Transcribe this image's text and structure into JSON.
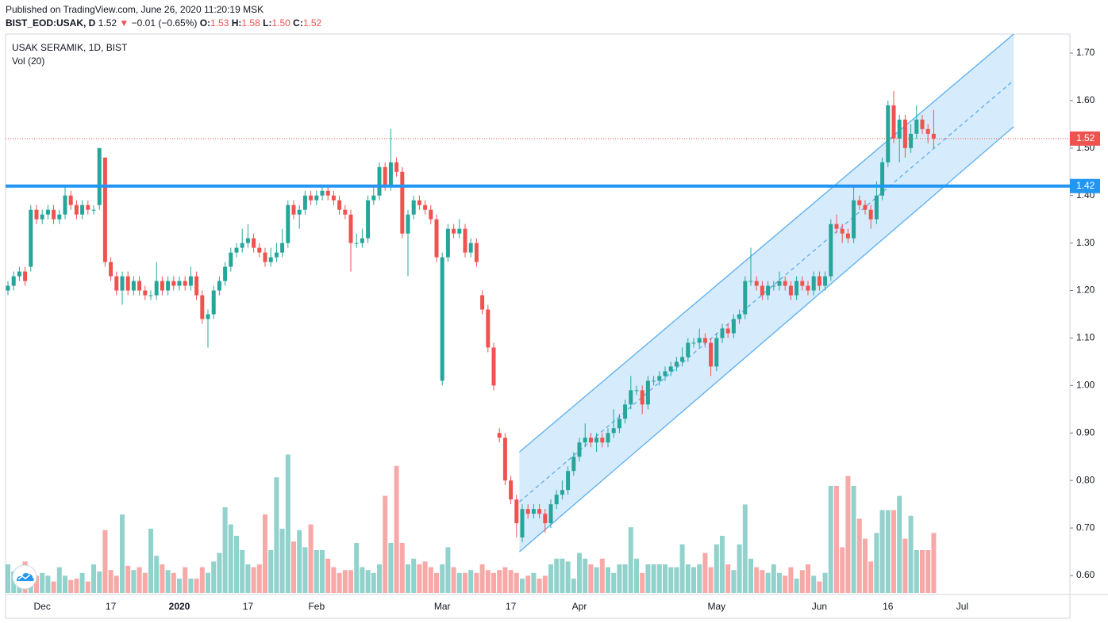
{
  "chart_data": {
    "type": "candlestick",
    "header": {
      "published": "Published on TradingView.com, June 26, 2020 11:20:19 MSK",
      "symbol": "BIST_EOD:USAK, D",
      "last": "1.52",
      "arrow": "▼",
      "change": "−0.01 (−0.65%)",
      "o_label": "O:",
      "o": "1.53",
      "h_label": "H:",
      "h": "1.58",
      "l_label": "L:",
      "l": "1.50",
      "c_label": "C:",
      "c": "1.52"
    },
    "legend": [
      "USAK SERAMIK, 1D, BIST",
      "Vol (20)"
    ],
    "categories": [
      null,
      null,
      null,
      null,
      null,
      null,
      "Dec",
      null,
      null,
      null,
      null,
      null,
      null,
      null,
      null,
      null,
      null,
      null,
      "17",
      null,
      null,
      null,
      null,
      null,
      null,
      null,
      null,
      null,
      null,
      null,
      "2020",
      null,
      null,
      null,
      null,
      null,
      null,
      null,
      null,
      null,
      null,
      null,
      "17",
      null,
      null,
      null,
      null,
      null,
      null,
      null,
      null,
      null,
      null,
      null,
      "Feb",
      null,
      null,
      null,
      null,
      null,
      null,
      null,
      null,
      null,
      null,
      null,
      null,
      null,
      null,
      null,
      null,
      null,
      null,
      null,
      null,
      null,
      "Mar",
      null,
      null,
      null,
      null,
      null,
      null,
      null,
      null,
      null,
      null,
      null,
      "17",
      null,
      null,
      null,
      null,
      null,
      null,
      null,
      null,
      null,
      null,
      null,
      "Apr",
      null,
      null,
      null,
      null,
      null,
      null,
      null,
      null,
      null,
      null,
      null,
      null,
      null,
      null,
      null,
      null,
      null,
      null,
      null,
      null,
      null,
      null,
      null,
      "May",
      null,
      null,
      null,
      null,
      null,
      null,
      null,
      null,
      null,
      null,
      null,
      null,
      null,
      null,
      null,
      null,
      null,
      "Jun",
      null,
      null,
      null,
      null,
      null,
      null,
      null,
      null,
      null,
      null,
      null,
      "16",
      null,
      null,
      null,
      null,
      null,
      null,
      null,
      null,
      null,
      null,
      null,
      null,
      "Jul",
      null,
      null,
      null,
      null,
      null,
      null,
      null,
      null,
      null
    ],
    "open": [
      1.2,
      1.21,
      1.23,
      1.24,
      1.25,
      1.37,
      1.35,
      1.36,
      1.37,
      1.35,
      1.36,
      1.4,
      1.38,
      1.36,
      1.38,
      1.37,
      1.38,
      1.48,
      1.26,
      1.23,
      1.2,
      1.23,
      1.2,
      1.22,
      1.2,
      1.19,
      1.19,
      1.22,
      1.2,
      1.22,
      1.21,
      1.22,
      1.21,
      1.23,
      1.19,
      1.14,
      1.15,
      1.2,
      1.22,
      1.25,
      1.28,
      1.29,
      1.3,
      1.31,
      1.29,
      1.28,
      1.26,
      1.27,
      1.28,
      1.3,
      1.38,
      1.36,
      1.37,
      1.4,
      1.39,
      1.4,
      1.41,
      1.4,
      1.39,
      1.37,
      1.36,
      1.3,
      1.3,
      1.31,
      1.39,
      1.4,
      1.46,
      1.42,
      1.47,
      1.45,
      1.32,
      1.36,
      1.39,
      1.38,
      1.37,
      1.35,
      1.01,
      1.27,
      1.33,
      1.32,
      1.33,
      1.28,
      1.3,
      1.19,
      1.16,
      1.08,
      0.9,
      0.89,
      0.8,
      0.76,
      0.68,
      0.74,
      0.73,
      0.74,
      0.73,
      0.71,
      0.75,
      0.77,
      0.78,
      0.82,
      0.85,
      0.88,
      0.89,
      0.88,
      0.89,
      0.88,
      0.9,
      0.91,
      0.93,
      0.96,
      0.99,
      0.99,
      0.96,
      1.01,
      1.01,
      1.02,
      1.03,
      1.04,
      1.05,
      1.06,
      1.09,
      1.09,
      1.1,
      1.09,
      1.04,
      1.1,
      1.12,
      1.11,
      1.14,
      1.15,
      1.22,
      1.22,
      1.21,
      1.19,
      1.21,
      1.21,
      1.22,
      1.21,
      1.19,
      1.22,
      1.21,
      1.2,
      1.23,
      1.21,
      1.23,
      1.34,
      1.33,
      1.32,
      1.31,
      1.39,
      1.38,
      1.37,
      1.35,
      1.4,
      1.47,
      1.59,
      1.52,
      1.56,
      1.5,
      1.53,
      1.56,
      1.54,
      1.53,
      null,
      null,
      null,
      null,
      null,
      null,
      null,
      null,
      null,
      null,
      null,
      null,
      null,
      null
    ],
    "high": [
      1.22,
      1.24,
      1.25,
      1.25,
      1.38,
      1.38,
      1.37,
      1.38,
      1.38,
      1.37,
      1.42,
      1.41,
      1.39,
      1.39,
      1.39,
      1.38,
      1.5,
      1.48,
      1.27,
      1.24,
      1.24,
      1.24,
      1.23,
      1.23,
      1.21,
      1.2,
      1.26,
      1.23,
      1.23,
      1.23,
      1.23,
      1.23,
      1.25,
      1.24,
      1.2,
      1.16,
      1.21,
      1.23,
      1.26,
      1.29,
      1.3,
      1.33,
      1.34,
      1.32,
      1.3,
      1.29,
      1.29,
      1.3,
      1.33,
      1.39,
      1.39,
      1.38,
      1.41,
      1.41,
      1.41,
      1.42,
      1.42,
      1.41,
      1.4,
      1.38,
      1.37,
      1.32,
      1.33,
      1.4,
      1.42,
      1.47,
      1.47,
      1.54,
      1.48,
      1.46,
      1.37,
      1.4,
      1.4,
      1.39,
      1.38,
      1.36,
      1.28,
      1.34,
      1.34,
      1.35,
      1.34,
      1.31,
      1.31,
      1.2,
      1.17,
      1.09,
      0.91,
      0.9,
      0.81,
      0.77,
      0.75,
      0.75,
      0.75,
      0.75,
      0.74,
      0.76,
      0.78,
      0.8,
      0.83,
      0.86,
      0.89,
      0.92,
      0.9,
      0.9,
      0.9,
      0.91,
      0.95,
      0.94,
      0.97,
      1.02,
      1.0,
      1.0,
      1.02,
      1.02,
      1.03,
      1.04,
      1.05,
      1.06,
      1.08,
      1.1,
      1.1,
      1.12,
      1.11,
      1.1,
      1.11,
      1.13,
      1.13,
      1.15,
      1.16,
      1.23,
      1.29,
      1.23,
      1.22,
      1.22,
      1.22,
      1.24,
      1.23,
      1.22,
      1.23,
      1.23,
      1.22,
      1.24,
      1.24,
      1.24,
      1.35,
      1.36,
      1.34,
      1.33,
      1.42,
      1.4,
      1.39,
      1.38,
      1.43,
      1.48,
      1.6,
      1.62,
      1.57,
      1.57,
      1.55,
      1.59,
      1.57,
      1.55,
      1.58,
      null,
      null,
      null,
      null,
      null,
      null,
      null,
      null,
      null,
      null,
      null,
      null,
      null,
      null
    ],
    "low": [
      1.19,
      1.2,
      1.22,
      1.21,
      1.24,
      1.34,
      1.34,
      1.35,
      1.34,
      1.34,
      1.35,
      1.37,
      1.35,
      1.35,
      1.36,
      1.36,
      1.37,
      1.25,
      1.22,
      1.19,
      1.17,
      1.19,
      1.19,
      1.19,
      1.18,
      1.18,
      1.18,
      1.19,
      1.19,
      1.2,
      1.2,
      1.2,
      1.2,
      1.18,
      1.13,
      1.08,
      1.14,
      1.19,
      1.21,
      1.24,
      1.27,
      1.28,
      1.29,
      1.28,
      1.27,
      1.25,
      1.25,
      1.26,
      1.27,
      1.29,
      1.35,
      1.33,
      1.36,
      1.38,
      1.38,
      1.39,
      1.39,
      1.38,
      1.36,
      1.35,
      1.24,
      1.29,
      1.29,
      1.3,
      1.38,
      1.39,
      1.41,
      1.41,
      1.44,
      1.31,
      1.23,
      1.35,
      1.37,
      1.36,
      1.34,
      1.26,
      1.0,
      1.26,
      1.31,
      1.31,
      1.27,
      1.27,
      1.25,
      1.15,
      1.07,
      0.99,
      0.88,
      0.79,
      0.75,
      0.68,
      0.67,
      0.72,
      0.72,
      0.72,
      0.69,
      0.7,
      0.74,
      0.76,
      0.77,
      0.81,
      0.84,
      0.87,
      0.87,
      0.86,
      0.87,
      0.87,
      0.89,
      0.9,
      0.92,
      0.95,
      0.98,
      0.94,
      0.95,
      1.0,
      1.0,
      1.01,
      1.02,
      1.03,
      1.04,
      1.05,
      1.08,
      1.08,
      1.08,
      1.02,
      1.03,
      1.09,
      1.1,
      1.1,
      1.13,
      1.14,
      1.21,
      1.2,
      1.18,
      1.18,
      1.2,
      1.2,
      1.2,
      1.18,
      1.18,
      1.2,
      1.19,
      1.19,
      1.2,
      1.2,
      1.22,
      1.32,
      1.3,
      1.3,
      1.3,
      1.37,
      1.36,
      1.33,
      1.34,
      1.39,
      1.46,
      1.51,
      1.47,
      1.48,
      1.49,
      1.52,
      1.53,
      1.51,
      1.5,
      null,
      null,
      null,
      null,
      null,
      null,
      null,
      null,
      null,
      null,
      null,
      null,
      null,
      null
    ],
    "close": [
      1.21,
      1.23,
      1.24,
      1.22,
      1.37,
      1.35,
      1.36,
      1.37,
      1.35,
      1.36,
      1.4,
      1.38,
      1.36,
      1.38,
      1.37,
      1.37,
      1.5,
      1.26,
      1.23,
      1.2,
      1.23,
      1.2,
      1.22,
      1.2,
      1.19,
      1.19,
      1.22,
      1.2,
      1.22,
      1.21,
      1.22,
      1.21,
      1.23,
      1.19,
      1.14,
      1.15,
      1.2,
      1.22,
      1.25,
      1.28,
      1.29,
      1.3,
      1.31,
      1.29,
      1.28,
      1.26,
      1.27,
      1.28,
      1.3,
      1.38,
      1.36,
      1.37,
      1.4,
      1.39,
      1.4,
      1.41,
      1.4,
      1.39,
      1.37,
      1.36,
      1.3,
      1.3,
      1.31,
      1.39,
      1.4,
      1.46,
      1.42,
      1.47,
      1.45,
      1.32,
      1.36,
      1.39,
      1.38,
      1.37,
      1.35,
      1.27,
      1.27,
      1.33,
      1.32,
      1.33,
      1.28,
      1.3,
      1.26,
      1.16,
      1.08,
      1.0,
      0.89,
      0.8,
      0.76,
      0.71,
      0.74,
      0.73,
      0.74,
      0.73,
      0.71,
      0.75,
      0.77,
      0.78,
      0.82,
      0.85,
      0.88,
      0.89,
      0.88,
      0.89,
      0.88,
      0.9,
      0.91,
      0.93,
      0.96,
      0.99,
      0.99,
      0.96,
      1.01,
      1.01,
      1.02,
      1.03,
      1.04,
      1.05,
      1.06,
      1.09,
      1.09,
      1.1,
      1.09,
      1.04,
      1.1,
      1.12,
      1.11,
      1.14,
      1.15,
      1.22,
      1.22,
      1.21,
      1.19,
      1.21,
      1.21,
      1.22,
      1.21,
      1.19,
      1.22,
      1.21,
      1.2,
      1.23,
      1.21,
      1.23,
      1.34,
      1.33,
      1.32,
      1.31,
      1.39,
      1.38,
      1.37,
      1.35,
      1.4,
      1.47,
      1.59,
      1.52,
      1.56,
      1.5,
      1.53,
      1.56,
      1.54,
      1.53,
      1.52,
      null,
      null,
      null,
      null,
      null,
      null,
      null,
      null,
      null,
      null,
      null,
      null,
      null,
      null
    ],
    "volume": [
      20,
      15,
      14,
      22,
      8,
      12,
      14,
      12,
      8,
      18,
      12,
      9,
      10,
      14,
      8,
      20,
      15,
      44,
      16,
      12,
      55,
      19,
      16,
      18,
      14,
      45,
      26,
      20,
      16,
      14,
      10,
      18,
      10,
      10,
      18,
      14,
      22,
      28,
      60,
      48,
      40,
      30,
      20,
      18,
      20,
      55,
      30,
      81,
      45,
      97,
      36,
      44,
      32,
      48,
      30,
      30,
      24,
      18,
      14,
      16,
      16,
      35,
      18,
      16,
      14,
      20,
      68,
      35,
      89,
      35,
      20,
      24,
      20,
      22,
      18,
      14,
      20,
      32,
      18,
      14,
      14,
      16,
      14,
      20,
      16,
      14,
      16,
      18,
      16,
      14,
      10,
      12,
      14,
      10,
      12,
      20,
      24,
      24,
      22,
      10,
      28,
      24,
      20,
      18,
      24,
      18,
      14,
      20,
      20,
      46,
      24,
      14,
      20,
      20,
      20,
      20,
      18,
      18,
      34,
      20,
      18,
      20,
      28,
      18,
      34,
      40,
      20,
      16,
      34,
      62,
      24,
      18,
      16,
      14,
      20,
      14,
      12,
      18,
      10,
      16,
      20,
      12,
      8,
      14,
      75,
      75,
      32,
      82,
      75,
      52,
      38,
      22,
      42,
      58,
      58,
      58,
      68,
      38,
      54,
      30,
      30,
      30,
      42,
      null,
      null,
      null,
      null,
      null,
      null,
      null,
      null,
      null,
      null,
      null,
      null,
      null,
      null
    ],
    "up_color": "#26a69a",
    "down_color": "#ef5350",
    "ylim": [
      0.56,
      1.74
    ],
    "yticks": [
      {
        "value": 0.6,
        "label": "0.60"
      },
      {
        "value": 0.7,
        "label": "0.70"
      },
      {
        "value": 0.8,
        "label": "0.80"
      },
      {
        "value": 0.9,
        "label": "0.90"
      },
      {
        "value": 1.0,
        "label": "1.00"
      },
      {
        "value": 1.1,
        "label": "1.10"
      },
      {
        "value": 1.2,
        "label": "1.20"
      },
      {
        "value": 1.3,
        "label": "1.30"
      },
      {
        "value": 1.4,
        "label": "1.40"
      },
      {
        "value": 1.5,
        "label": "1.50"
      },
      {
        "value": 1.6,
        "label": "1.60"
      },
      {
        "value": 1.7,
        "label": "1.70"
      }
    ],
    "volume_lim": [
      0,
      100
    ],
    "grid": false,
    "level": 1.42,
    "level_color": "#2196f3",
    "last_price": 1.52,
    "channel": {
      "x": [
        89.5,
        176
      ],
      "upper": [
        0.86,
        1.74
      ],
      "lower": [
        0.65,
        1.545
      ],
      "color": "#5aaef0"
    }
  }
}
